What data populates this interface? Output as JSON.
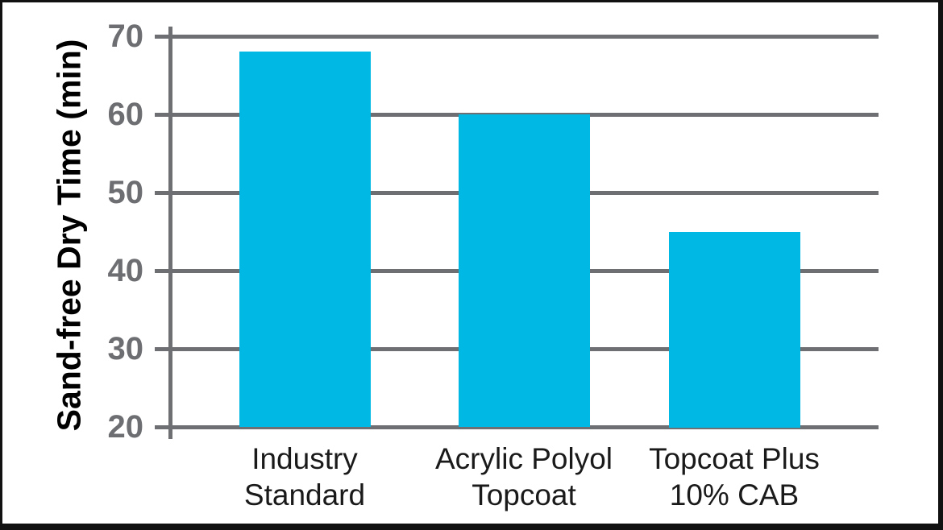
{
  "chart_data": {
    "type": "bar",
    "title": "",
    "xlabel": "",
    "ylabel": "Sand-free Dry Time (min)",
    "categories": [
      "Industry Standard",
      "Acrylic Polyol Topcoat",
      "Topcoat Plus 10% CAB"
    ],
    "categories_display": [
      "Industry\nStandard",
      "Acrylic Polyol\nTopcoat",
      "Topcoat Plus\n10% CAB"
    ],
    "values": [
      68,
      60,
      45
    ],
    "unit": "min",
    "ylim": [
      20,
      70
    ],
    "yticks": [
      70,
      60,
      50,
      40,
      30,
      20
    ],
    "ytick_interval": 10,
    "grid": "horizontal",
    "legend": "none",
    "colors": {
      "bar": "#00B8E4",
      "gridline": "#6E6F72",
      "axis_line": "#6E6F72",
      "tick_label": "#6D6E71",
      "category_label": "#1A1A1A",
      "axis_title": "#000000",
      "background": "#FFFFFF",
      "frame_border": "#111111"
    }
  }
}
